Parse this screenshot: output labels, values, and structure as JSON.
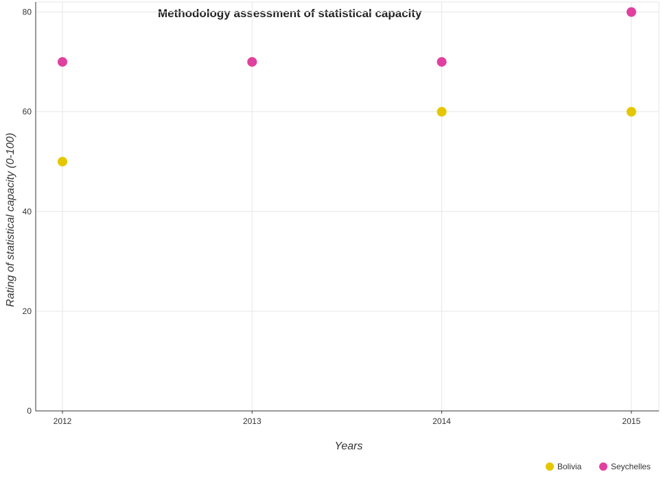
{
  "chart_data": {
    "type": "scatter",
    "title": "Methodology assessment of statistical capacity",
    "xlabel": "Years",
    "ylabel": "Rating of statistical capacity (0-100)",
    "categories": [
      "2012",
      "2013",
      "2014",
      "2015"
    ],
    "y_ticks": [
      "0",
      "20",
      "40",
      "60",
      "80"
    ],
    "ylim": [
      0,
      82
    ],
    "grid": true,
    "legend_position": "bottom-right",
    "series": [
      {
        "name": "Bolivia",
        "color": "#e5c700",
        "values": [
          50,
          70,
          60,
          60
        ]
      },
      {
        "name": "Seychelles",
        "color": "#e040a0",
        "values": [
          70,
          70,
          70,
          80
        ]
      }
    ]
  }
}
